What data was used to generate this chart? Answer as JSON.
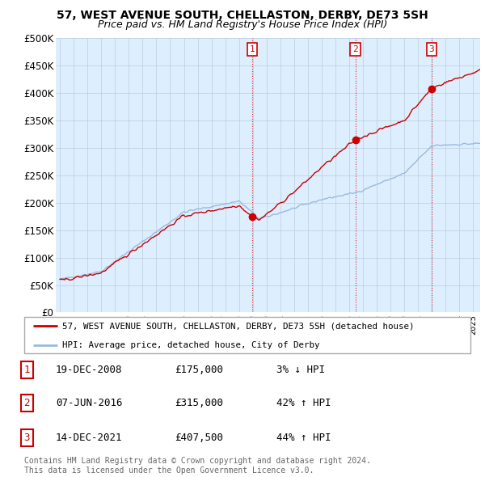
{
  "title": "57, WEST AVENUE SOUTH, CHELLASTON, DERBY, DE73 5SH",
  "subtitle": "Price paid vs. HM Land Registry's House Price Index (HPI)",
  "price_line_color": "#cc0000",
  "hpi_line_color": "#99bbdd",
  "background_color": "#ffffff",
  "chart_bg_color": "#ddeeff",
  "grid_color": "#bbccdd",
  "ylim": [
    0,
    500000
  ],
  "yticks": [
    0,
    50000,
    100000,
    150000,
    200000,
    250000,
    300000,
    350000,
    400000,
    450000,
    500000
  ],
  "ytick_labels": [
    "£0",
    "£50K",
    "£100K",
    "£150K",
    "£200K",
    "£250K",
    "£300K",
    "£350K",
    "£400K",
    "£450K",
    "£500K"
  ],
  "sale_points": [
    {
      "year": 2008.96,
      "price": 175000,
      "label": "1"
    },
    {
      "year": 2016.44,
      "price": 315000,
      "label": "2"
    },
    {
      "year": 2021.96,
      "price": 407500,
      "label": "3"
    }
  ],
  "legend_line1": "57, WEST AVENUE SOUTH, CHELLASTON, DERBY, DE73 5SH (detached house)",
  "legend_line2": "HPI: Average price, detached house, City of Derby",
  "table_rows": [
    {
      "num": "1",
      "date": "19-DEC-2008",
      "price": "£175,000",
      "change": "3% ↓ HPI"
    },
    {
      "num": "2",
      "date": "07-JUN-2016",
      "price": "£315,000",
      "change": "42% ↑ HPI"
    },
    {
      "num": "3",
      "date": "14-DEC-2021",
      "price": "£407,500",
      "change": "44% ↑ HPI"
    }
  ],
  "footer": "Contains HM Land Registry data © Crown copyright and database right 2024.\nThis data is licensed under the Open Government Licence v3.0."
}
